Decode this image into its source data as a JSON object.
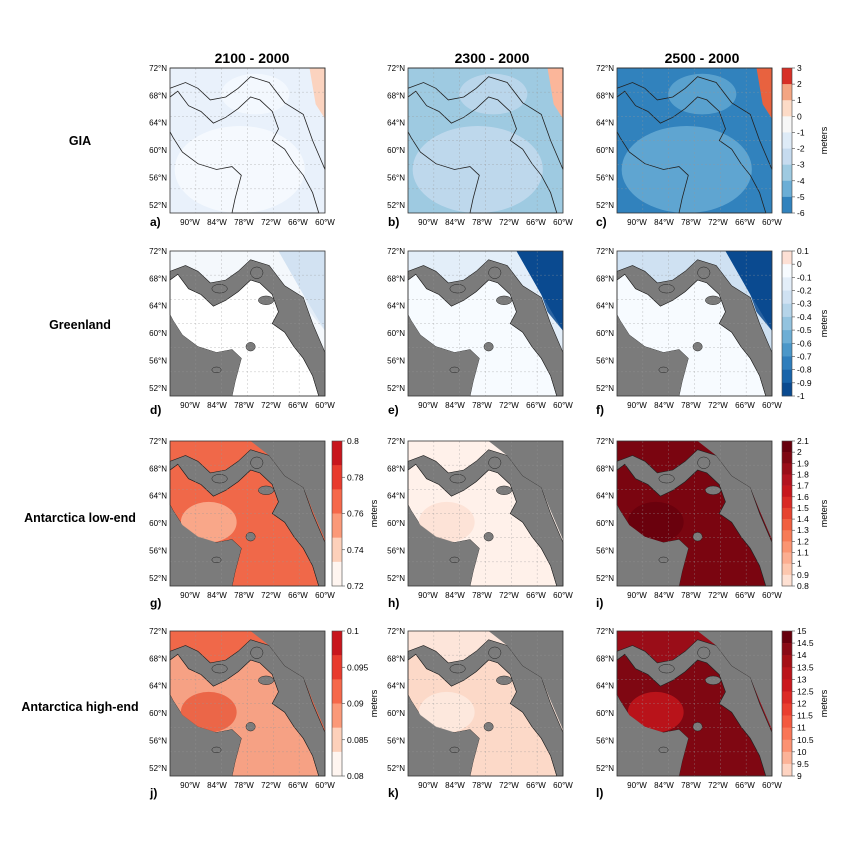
{
  "figure": {
    "column_titles": [
      "2100 - 2000",
      "2300 - 2000",
      "2500 - 2000"
    ],
    "row_labels": [
      "GIA",
      "Greenland",
      "Antarctica low-end",
      "Antarctica high-end"
    ],
    "panel_labels": [
      "a)",
      "b)",
      "c)",
      "d)",
      "e)",
      "f)",
      "g)",
      "h)",
      "i)",
      "j)",
      "k)",
      "l)"
    ],
    "lat_ticks": [
      "72°N",
      "68°N",
      "64°N",
      "60°N",
      "56°N",
      "52°N"
    ],
    "lon_ticks": [
      "90°W",
      "84°W",
      "78°W",
      "72°W",
      "66°W",
      "60°W"
    ],
    "land_color": "#7b7b7b",
    "colorbars": [
      {
        "row": 0,
        "ticks": [
          "3",
          "2",
          "1",
          "0",
          "-1",
          "-2",
          "-3",
          "-4",
          "-5",
          "-6"
        ],
        "unit": "meters",
        "colors": [
          "#d73027",
          "#f4a582",
          "#fddbc7",
          "#f7f7f7",
          "#deebf7",
          "#c6dbef",
          "#9ecae1",
          "#6baed6",
          "#3182bd"
        ]
      },
      {
        "row": 1,
        "ticks": [
          "0.1",
          "0",
          "-0.1",
          "-0.2",
          "-0.3",
          "-0.4",
          "-0.5",
          "-0.6",
          "-0.7",
          "-0.8",
          "-0.9",
          "-1"
        ],
        "unit": "meters",
        "colors": [
          "#fde0d5",
          "#f7fbff",
          "#e3eef9",
          "#cfe1f2",
          "#b5d4e9",
          "#93c3df",
          "#6daed5",
          "#4b97c9",
          "#2f7ebc",
          "#1864aa",
          "#0a4a90"
        ]
      },
      {
        "row": 2,
        "ticks": [
          "0.8",
          "0.78",
          "0.76",
          "0.74",
          "0.72"
        ],
        "unit": "meters",
        "colors": [
          "#c8161d",
          "#e83a2d",
          "#f6684a",
          "#fb9978",
          "#fdd0ba",
          "#fff5f0"
        ]
      },
      {
        "row": 2,
        "col": 2,
        "ticks": [
          "2.1",
          "2",
          "1.9",
          "1.8",
          "1.7",
          "1.6",
          "1.5",
          "1.4",
          "1.3",
          "1.2",
          "1.1",
          "1",
          "0.9",
          "0.8"
        ],
        "unit": "meters",
        "colors": [
          "#67000d",
          "#7f0712",
          "#9a0d18",
          "#b3131f",
          "#c7171d",
          "#d92a25",
          "#e6432f",
          "#f15f3f",
          "#f77b56",
          "#fb9572",
          "#fcae91",
          "#fdc7ae",
          "#fee0d2"
        ]
      },
      {
        "row": 3,
        "ticks": [
          "0.1",
          "0.095",
          "0.09",
          "0.085",
          "0.08"
        ],
        "unit": "meters",
        "colors": [
          "#c8161d",
          "#e83a2d",
          "#f6684a",
          "#fb9978",
          "#fdd0ba",
          "#fff5f0"
        ]
      },
      {
        "row": 3,
        "col": 2,
        "ticks": [
          "15",
          "14.5",
          "14",
          "13.5",
          "13",
          "12.5",
          "12",
          "11.5",
          "11",
          "10.5",
          "10",
          "9.5",
          "9"
        ],
        "unit": "meters",
        "colors": [
          "#67000d",
          "#8a0a15",
          "#a50f15",
          "#bb141a",
          "#cb181d",
          "#dc2a25",
          "#ea3f2f",
          "#f4593f",
          "#f97556",
          "#fc9272",
          "#fcb398",
          "#fed3c1"
        ]
      }
    ]
  }
}
